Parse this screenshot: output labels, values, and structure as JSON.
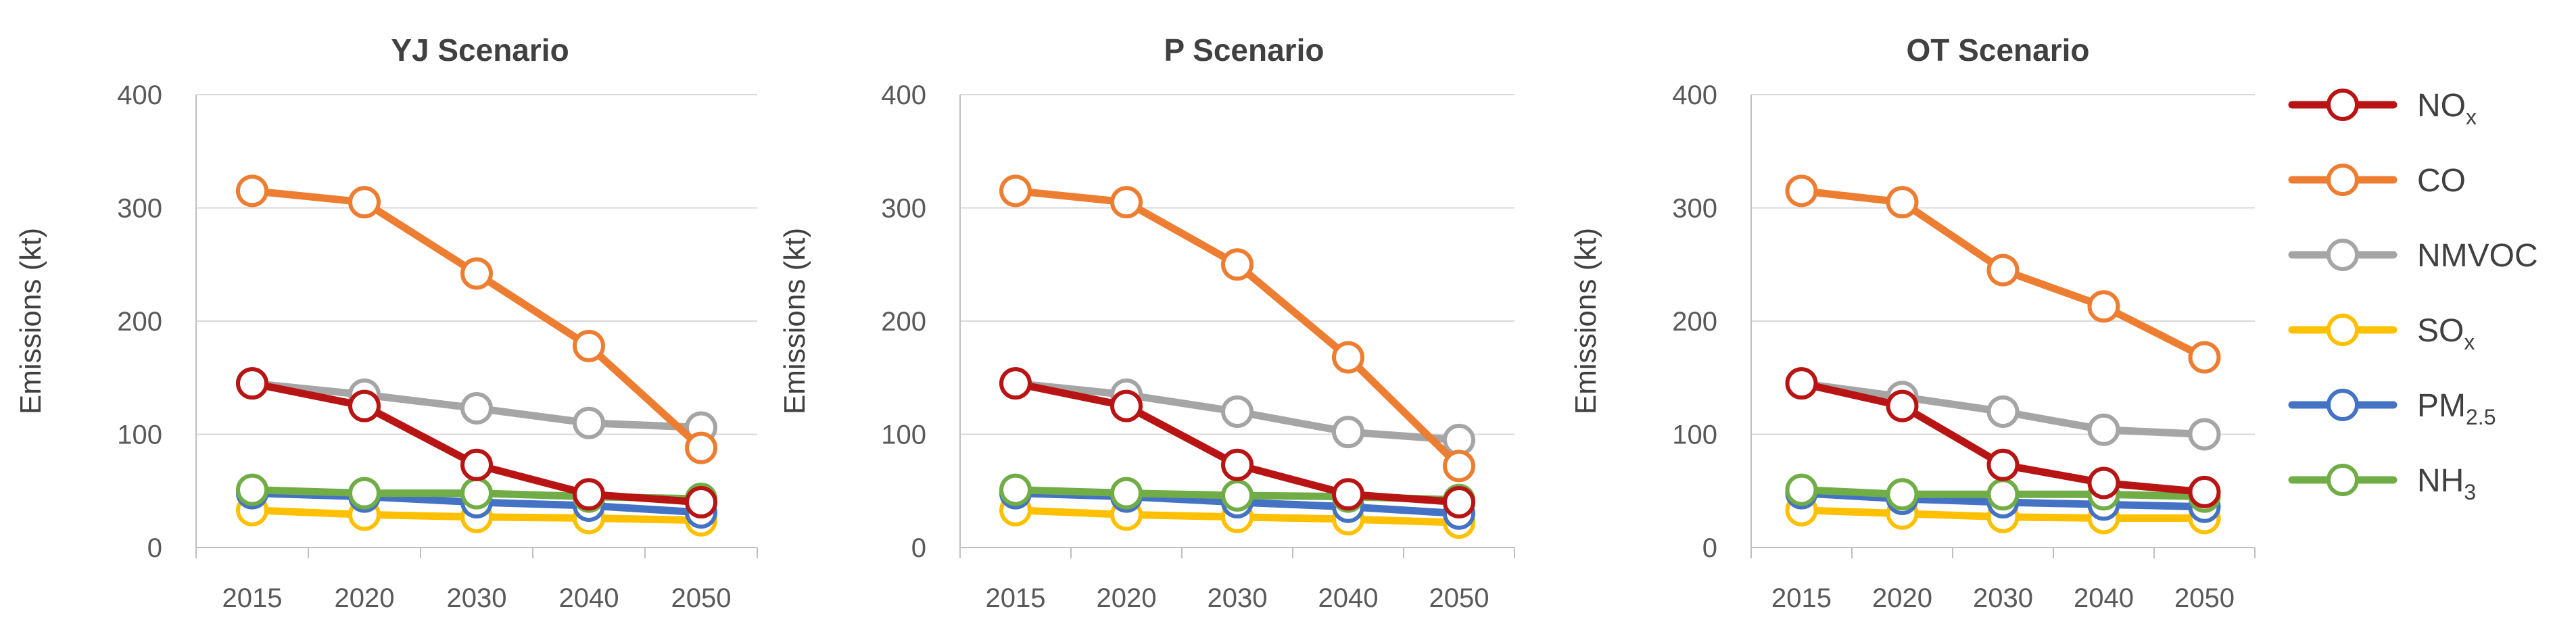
{
  "chart_data": {
    "type": "line",
    "categories": [
      "2015",
      "2020",
      "2030",
      "2040",
      "2050"
    ],
    "ylabel": "Emissions (kt)",
    "ylim": [
      0,
      400
    ],
    "yticks": [
      0,
      100,
      200,
      300,
      400
    ],
    "grid": true,
    "legend_position": "right",
    "series_styles": [
      {
        "name": "NOx",
        "label": "NO",
        "sub": "x",
        "color": "#b81414"
      },
      {
        "name": "CO",
        "label": "CO",
        "sub": "",
        "color": "#ed7d31"
      },
      {
        "name": "NMVOC",
        "label": "NMVOC",
        "sub": "",
        "color": "#a5a5a5"
      },
      {
        "name": "SOx",
        "label": "SO",
        "sub": "x",
        "color": "#ffc000"
      },
      {
        "name": "PM2.5",
        "label": "PM",
        "sub": "2.5",
        "color": "#4472c4"
      },
      {
        "name": "NH3",
        "label": "NH",
        "sub": "3",
        "color": "#70ad47"
      }
    ],
    "panels": [
      {
        "title": "YJ Scenario",
        "series": [
          {
            "name": "NOx",
            "values": [
              145,
              125,
              73,
              47,
              40
            ]
          },
          {
            "name": "CO",
            "values": [
              315,
              305,
              242,
              178,
              88
            ]
          },
          {
            "name": "NMVOC",
            "values": [
              145,
              135,
              123,
              110,
              106
            ]
          },
          {
            "name": "SOx",
            "values": [
              33,
              29,
              27,
              26,
              24
            ]
          },
          {
            "name": "PM2.5",
            "values": [
              48,
              45,
              40,
              37,
              31
            ]
          },
          {
            "name": "NH3",
            "values": [
              51,
              48,
              48,
              45,
              43
            ]
          }
        ]
      },
      {
        "title": "P Scenario",
        "series": [
          {
            "name": "NOx",
            "values": [
              145,
              125,
              73,
              47,
              40
            ]
          },
          {
            "name": "CO",
            "values": [
              315,
              305,
              250,
              168,
              72
            ]
          },
          {
            "name": "NMVOC",
            "values": [
              145,
              135,
              120,
              102,
              95
            ]
          },
          {
            "name": "SOx",
            "values": [
              33,
              29,
              27,
              25,
              22
            ]
          },
          {
            "name": "PM2.5",
            "values": [
              48,
              45,
              40,
              36,
              30
            ]
          },
          {
            "name": "NH3",
            "values": [
              51,
              48,
              46,
              45,
              42
            ]
          }
        ]
      },
      {
        "title": "OT Scenario",
        "series": [
          {
            "name": "NOx",
            "values": [
              145,
              125,
              73,
              57,
              49
            ]
          },
          {
            "name": "CO",
            "values": [
              315,
              305,
              245,
              213,
              168
            ]
          },
          {
            "name": "NMVOC",
            "values": [
              145,
              133,
              120,
              104,
              100
            ]
          },
          {
            "name": "SOx",
            "values": [
              33,
              30,
              27,
              26,
              26
            ]
          },
          {
            "name": "PM2.5",
            "values": [
              48,
              43,
              40,
              38,
              36
            ]
          },
          {
            "name": "NH3",
            "values": [
              51,
              47,
              47,
              47,
              45
            ]
          }
        ]
      }
    ]
  }
}
